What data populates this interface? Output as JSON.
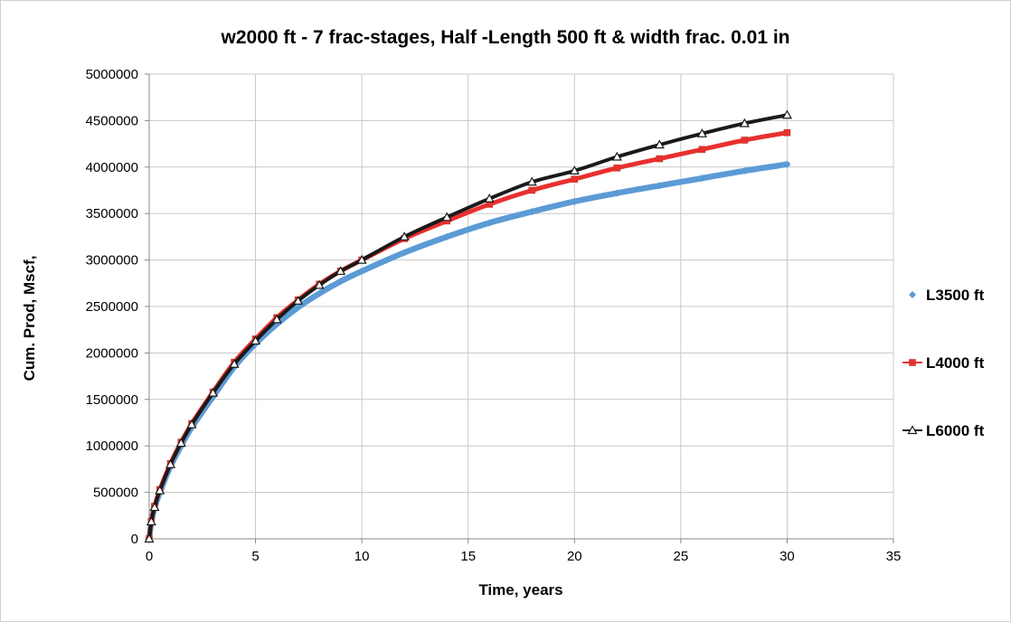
{
  "chart_data": {
    "type": "line",
    "title": "w2000 ft - 7 frac-stages, Half -Length 500 ft & width frac. 0.01 in",
    "xlabel": "Time, years",
    "ylabel": "Cum. Prod, Mscf,",
    "xlim": [
      0,
      35
    ],
    "ylim": [
      0,
      5000000
    ],
    "x_ticks": [
      "0",
      "5",
      "10",
      "15",
      "20",
      "25",
      "30",
      "35"
    ],
    "y_ticks": [
      "0",
      "500000",
      "1000000",
      "1500000",
      "2000000",
      "2500000",
      "3000000",
      "3500000",
      "4000000",
      "4500000",
      "5000000"
    ],
    "grid": true,
    "legend_position": "right",
    "x": [
      0,
      0.1,
      0.25,
      0.5,
      1,
      1.5,
      2,
      3,
      4,
      5,
      6,
      7,
      8,
      9,
      10,
      12,
      14,
      16,
      18,
      20,
      22,
      24,
      26,
      28,
      30
    ],
    "series": [
      {
        "name": "L3500 ft",
        "color": "#5B9BD5",
        "marker": "diamond",
        "values": [
          0,
          180000,
          330000,
          500000,
          780000,
          1000000,
          1200000,
          1530000,
          1850000,
          2100000,
          2310000,
          2490000,
          2640000,
          2770000,
          2880000,
          3080000,
          3250000,
          3400000,
          3520000,
          3630000,
          3720000,
          3800000,
          3880000,
          3960000,
          4030000
        ]
      },
      {
        "name": "L4000 ft",
        "color": "#E8302E",
        "marker": "square",
        "values": [
          0,
          190000,
          350000,
          530000,
          810000,
          1040000,
          1240000,
          1580000,
          1900000,
          2150000,
          2380000,
          2570000,
          2740000,
          2880000,
          3000000,
          3230000,
          3420000,
          3600000,
          3750000,
          3870000,
          3990000,
          4090000,
          4190000,
          4290000,
          4370000
        ]
      },
      {
        "name": "L6000 ft",
        "color": "#1A1A1A",
        "marker": "triangle",
        "values": [
          0,
          185000,
          340000,
          520000,
          800000,
          1030000,
          1230000,
          1570000,
          1880000,
          2130000,
          2360000,
          2560000,
          2730000,
          2880000,
          3000000,
          3250000,
          3460000,
          3660000,
          3840000,
          3960000,
          4110000,
          4240000,
          4360000,
          4470000,
          4560000
        ]
      }
    ]
  }
}
